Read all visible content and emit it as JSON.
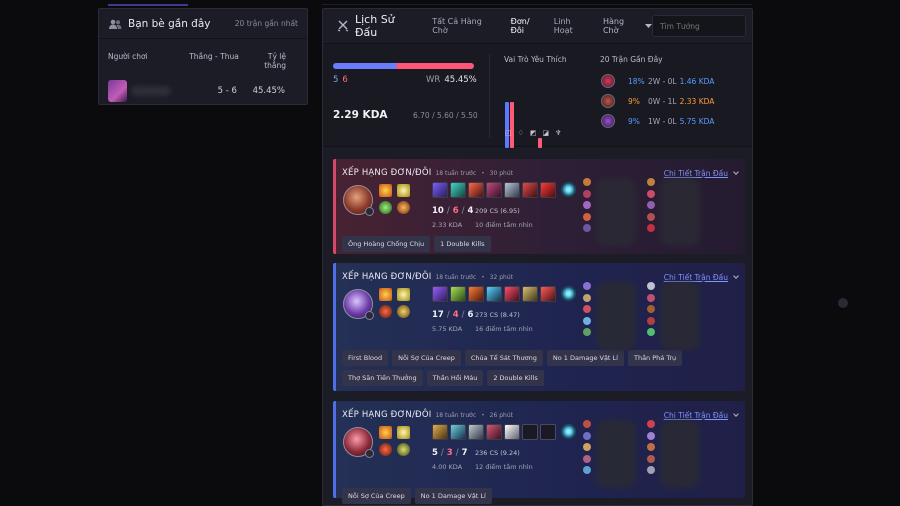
{
  "friends": {
    "title": "Bạn bè gần đây",
    "subtitle": "20 trận gần nhất",
    "columns": [
      "Người chơi",
      "Thắng - Thua",
      "Tỷ lệ thắng"
    ],
    "rows": [
      {
        "wl": "5 - 6",
        "winrate": "45.45%"
      }
    ]
  },
  "history": {
    "title": "Lịch Sử Đấu",
    "tabs": [
      "Tất Cả Hàng Chờ",
      "Đơn/Đôi",
      "Linh Hoạt"
    ],
    "dropdown": "Hàng Chờ",
    "search_placeholder": "Tìm Tướng"
  },
  "summary": {
    "wins": "5",
    "losses": "6",
    "winrate_label": "WR",
    "winrate": "45.45%",
    "kda": "2.29 KDA",
    "kda_avg": "6.70 / 5.60 / 5.50",
    "winrate_fraction": 0.4545,
    "roles_title": "Vai Trò Yêu Thích",
    "roles": [
      {
        "icon": "top-role-icon",
        "level": 0.95
      },
      {
        "icon": "jungle-role-icon",
        "level": 0.95
      },
      {
        "icon": "mid-role-icon",
        "level": 0
      },
      {
        "icon": "adc-role-icon",
        "level": 0.2
      },
      {
        "icon": "support-role-icon",
        "level": 0
      }
    ],
    "recent_title": "20 Trận Gần Đây",
    "recent": [
      {
        "winrate": "18%",
        "record": "2W - 0L",
        "kda": "1.46 KDA",
        "color": "#5b9cff"
      },
      {
        "winrate": "9%",
        "record": "0W - 1L",
        "kda": "2.33 KDA",
        "color": "#ff9a3c"
      },
      {
        "winrate": "9%",
        "record": "1W - 0L",
        "kda": "5.75 KDA",
        "color": "#5b9cff"
      }
    ]
  },
  "matches": [
    {
      "result": "loss",
      "queue": "XẾP HẠNG ĐƠN/ĐÔI",
      "ago": "18 tuần trước",
      "duration": "30 phút",
      "detail": "Chi Tiết Trận Đấu",
      "k": "10",
      "d": "6",
      "a": "4",
      "kda": "2.33 KDA",
      "cs": "209 CS (6.95)",
      "vision": "10 điểm tầm nhìn",
      "tags": [
        "Ông Hoàng Chống Chịu",
        "1 Double Kills"
      ]
    },
    {
      "result": "win",
      "queue": "XẾP HẠNG ĐƠN/ĐÔI",
      "ago": "18 tuần trước",
      "duration": "32 phút",
      "detail": "Chi Tiết Trận Đấu",
      "k": "17",
      "d": "4",
      "a": "6",
      "kda": "5.75 KDA",
      "cs": "273 CS (8.47)",
      "vision": "16 điểm tầm nhìn",
      "tags": [
        "First Blood",
        "Nỗi Sợ Của Creep",
        "Chúa Tể Sát Thương",
        "No 1 Damage Vật Lí",
        "Thần Phá Trụ",
        "Thợ Săn Tiền Thưởng",
        "Thần Hồi Máu",
        "2 Double Kills"
      ]
    },
    {
      "result": "win",
      "queue": "XẾP HẠNG ĐƠN/ĐÔI",
      "ago": "18 tuần trước",
      "duration": "26 phút",
      "detail": "Chi Tiết Trận Đấu",
      "k": "5",
      "d": "3",
      "a": "7",
      "kda": "4.00 KDA",
      "cs": "236 CS (9.24)",
      "vision": "12 điểm tầm nhìn",
      "tags": [
        "Nỗi Sợ Của Creep",
        "No 1 Damage Vật Lí"
      ]
    }
  ]
}
